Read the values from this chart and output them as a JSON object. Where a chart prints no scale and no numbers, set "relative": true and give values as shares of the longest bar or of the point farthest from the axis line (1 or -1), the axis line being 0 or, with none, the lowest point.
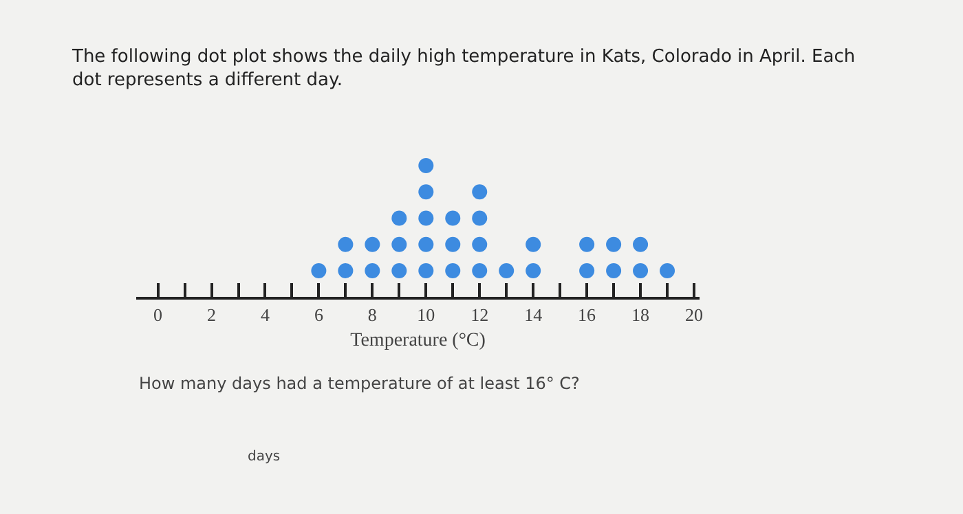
{
  "chart_data": {
    "type": "scatter",
    "title": "The following dot plot shows the daily high temperature in Kats, Colorado in April. Each dot represents a different day.",
    "xlabel": "Temperature (°C)",
    "annotations": [
      "How many days had a temperature of at least 16° C?",
      "days"
    ],
    "relative": true,
    "x": [
      6,
      7,
      7,
      8,
      8,
      9,
      9,
      9,
      10,
      10,
      10,
      10,
      10,
      11,
      11,
      11,
      12,
      12,
      12,
      12,
      13,
      14,
      14,
      16,
      16,
      17,
      17,
      18,
      18,
      19
    ],
    "values": [
      0.2,
      0.2,
      0.4,
      0.2,
      0.4,
      0.2,
      0.4,
      0.6,
      0.2,
      0.4,
      0.6,
      0.8,
      1.0,
      0.2,
      0.4,
      0.6,
      0.2,
      0.4,
      0.6,
      0.8,
      0.2,
      0.2,
      0.4,
      0.2,
      0.4,
      0.2,
      0.4,
      0.2,
      0.4,
      0.2
    ],
    "color": "#3d8be0",
    "marker": "circle",
    "xlim": [
      -0.8,
      20.2
    ],
    "xticks": [
      0,
      {
        "value": 1,
        "label": null
      },
      2,
      {
        "value": 3,
        "label": null
      },
      4,
      {
        "value": 5,
        "label": null
      },
      6,
      {
        "value": 7,
        "label": null
      },
      8,
      {
        "value": 9,
        "label": null
      },
      10,
      {
        "value": 11,
        "label": null
      },
      12,
      {
        "value": 13,
        "label": null
      },
      14,
      {
        "value": 15,
        "label": null
      },
      16,
      {
        "value": 17,
        "label": null
      },
      18,
      {
        "value": 19,
        "label": null
      },
      20
    ],
    "tick_labels": "x",
    "grid": false,
    "legend": false
  }
}
